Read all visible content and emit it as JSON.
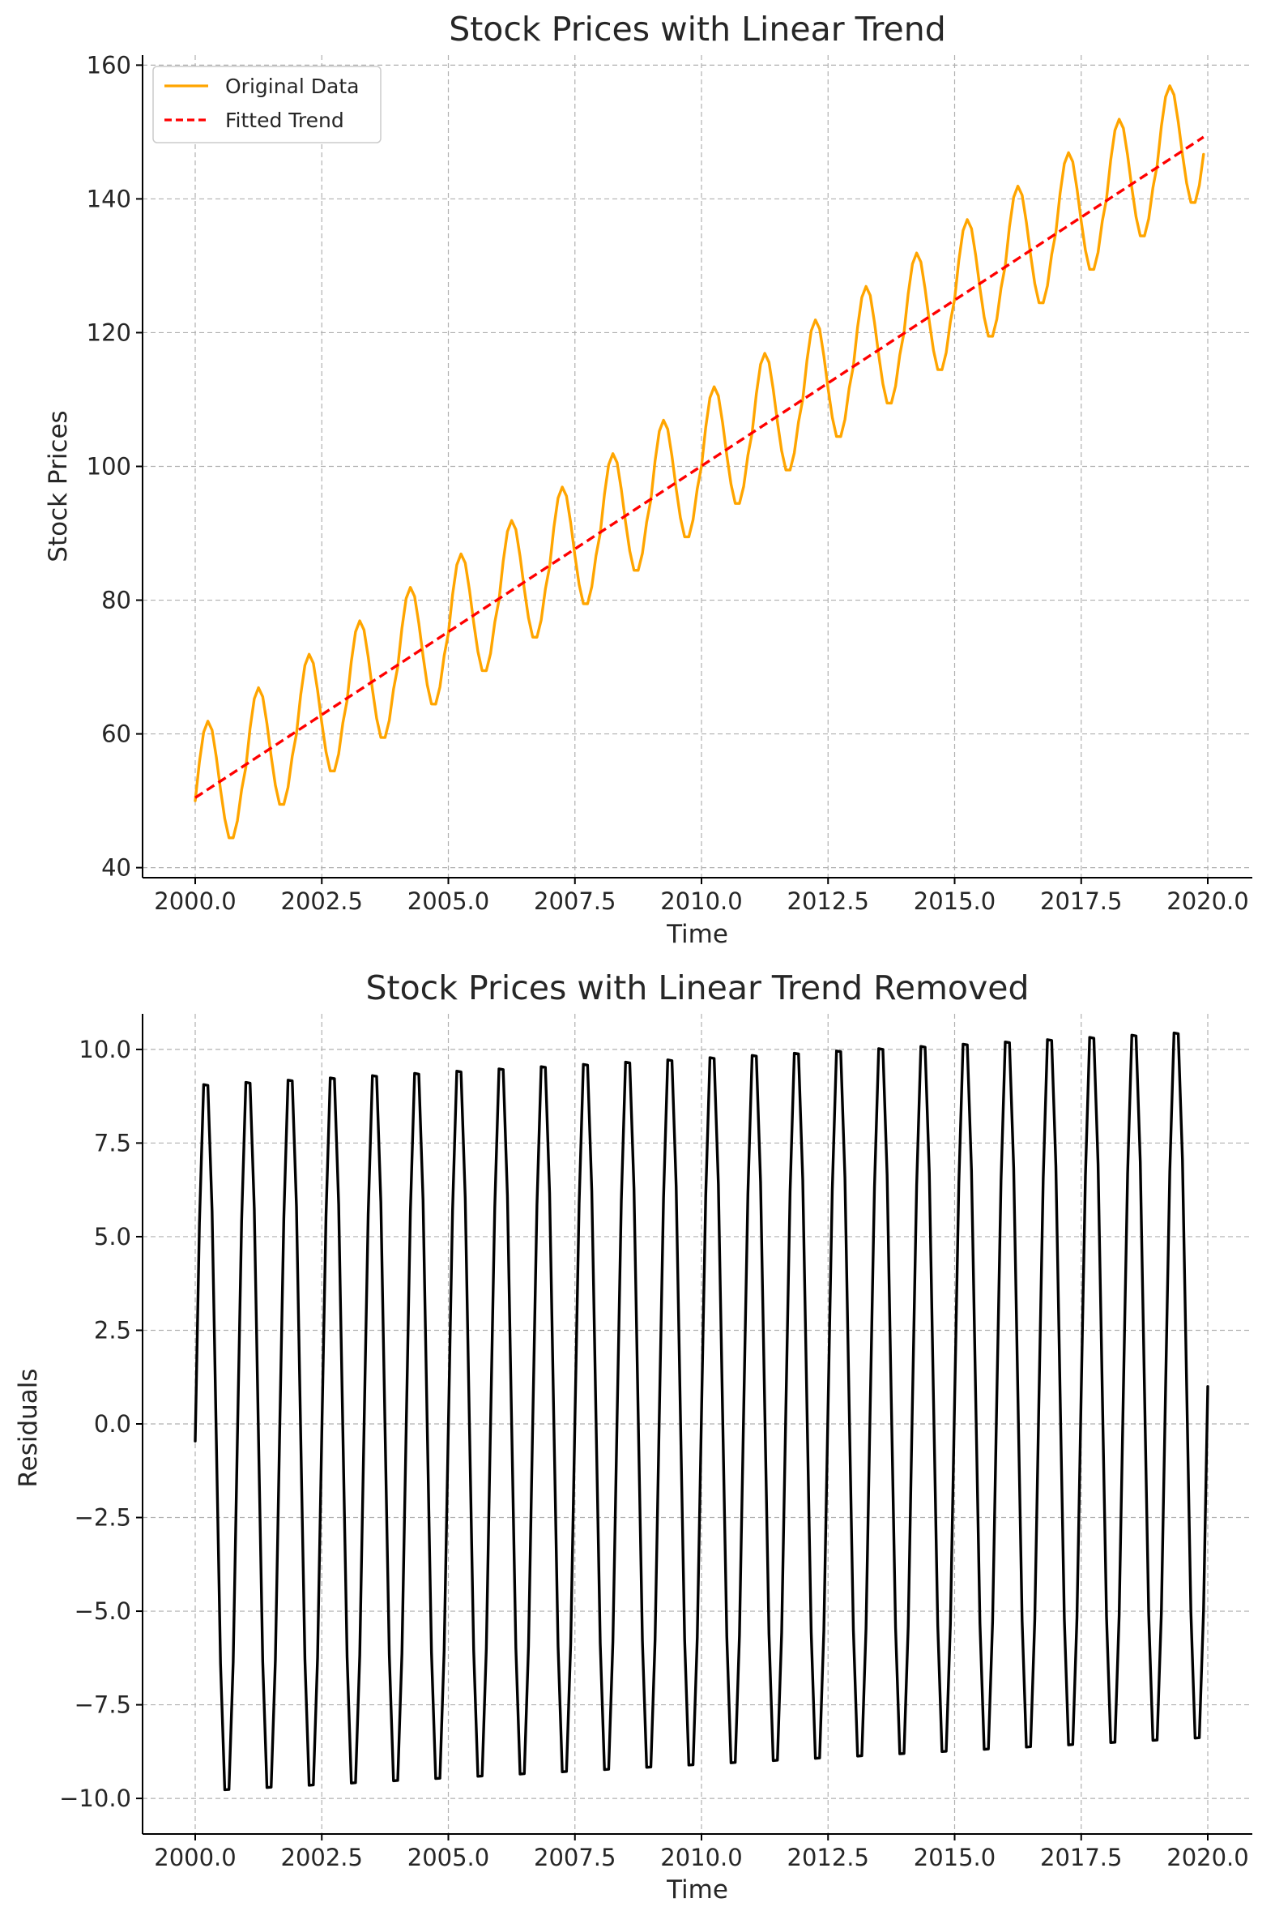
{
  "chart_data": [
    {
      "type": "line",
      "title": "Stock Prices with Linear Trend",
      "xlabel": "Time",
      "ylabel": "Stock Prices",
      "xlim": [
        1998.96,
        2020.88
      ],
      "ylim": [
        38.5,
        161.5
      ],
      "x_ticks": [
        2000,
        2002.5,
        2005,
        2007.5,
        2010,
        2012.5,
        2015,
        2017.5,
        2020
      ],
      "x_tick_labels": [
        "2000.0",
        "2002.5",
        "2005.0",
        "2007.5",
        "2010.0",
        "2012.5",
        "2015.0",
        "2017.5",
        "2020.0"
      ],
      "y_ticks": [
        40,
        60,
        80,
        100,
        120,
        140,
        160
      ],
      "y_tick_labels": [
        "40",
        "60",
        "80",
        "100",
        "120",
        "140",
        "160"
      ],
      "grid": true,
      "legend": "top-left",
      "series": [
        {
          "name": "Original Data",
          "color": "#FFA500",
          "line_style": "solid",
          "x_start": 2000.0,
          "x_step": 0.0833333,
          "values": [
            50.0,
            55.83,
            60.26,
            61.91,
            60.56,
            56.54,
            51.67,
            47.33,
            44.47,
            44.46,
            47.01,
            51.66,
            55.0,
            60.83,
            65.26,
            66.91,
            65.56,
            61.54,
            56.67,
            52.33,
            49.47,
            49.46,
            52.01,
            56.66,
            60.0,
            65.83,
            70.26,
            71.91,
            70.56,
            66.54,
            61.67,
            57.33,
            54.47,
            54.46,
            57.01,
            61.66,
            65.0,
            70.83,
            75.26,
            76.91,
            75.56,
            71.54,
            66.67,
            62.33,
            59.47,
            59.46,
            62.01,
            66.66,
            70.0,
            75.83,
            80.26,
            81.91,
            80.56,
            76.54,
            71.67,
            67.33,
            64.47,
            64.46,
            67.01,
            71.66,
            75.0,
            80.83,
            85.26,
            86.91,
            85.56,
            81.54,
            76.67,
            72.33,
            69.47,
            69.46,
            72.01,
            76.66,
            80.0,
            85.83,
            90.26,
            91.91,
            90.56,
            86.54,
            81.67,
            77.33,
            74.47,
            74.46,
            77.01,
            81.66,
            85.0,
            90.83,
            95.26,
            96.91,
            95.56,
            91.54,
            86.67,
            82.33,
            79.47,
            79.46,
            82.01,
            86.66,
            90.0,
            95.83,
            100.26,
            101.91,
            100.56,
            96.54,
            91.67,
            87.33,
            84.47,
            84.46,
            87.01,
            91.66,
            95.0,
            100.83,
            105.26,
            106.91,
            105.56,
            101.54,
            96.67,
            92.33,
            89.47,
            89.46,
            92.01,
            96.66,
            100.0,
            105.83,
            110.26,
            111.91,
            110.56,
            106.54,
            101.67,
            97.33,
            94.47,
            94.46,
            97.01,
            101.66,
            105.0,
            110.83,
            115.26,
            116.91,
            115.56,
            111.54,
            106.67,
            102.33,
            99.47,
            99.46,
            102.01,
            106.66,
            110.0,
            115.83,
            120.26,
            121.91,
            120.56,
            116.54,
            111.67,
            107.33,
            104.47,
            104.46,
            107.01,
            111.66,
            115.0,
            120.83,
            125.26,
            126.91,
            125.56,
            121.54,
            116.67,
            112.33,
            109.47,
            109.46,
            112.01,
            116.66,
            120.0,
            125.83,
            130.26,
            131.91,
            130.56,
            126.54,
            121.67,
            117.33,
            114.47,
            114.46,
            117.01,
            121.66,
            125.0,
            130.83,
            135.26,
            136.91,
            135.56,
            131.54,
            126.67,
            122.33,
            119.47,
            119.46,
            122.01,
            126.66,
            130.0,
            135.83,
            140.26,
            141.91,
            140.56,
            136.54,
            131.67,
            127.33,
            124.47,
            124.46,
            127.01,
            131.66,
            135.0,
            140.83,
            145.26,
            146.91,
            145.56,
            141.54,
            136.67,
            132.33,
            129.47,
            129.46,
            132.01,
            136.66,
            140.0,
            145.83,
            150.26,
            151.91,
            150.56,
            146.54,
            141.67,
            137.33,
            134.47,
            134.46,
            137.01,
            141.66,
            145.0,
            150.83,
            155.26,
            156.91,
            155.56,
            151.54,
            146.67,
            142.33,
            139.47,
            139.46,
            142.01,
            146.66
          ]
        },
        {
          "name": "Fitted Trend",
          "color": "#FF0000",
          "line_style": "dashed",
          "x": [
            2000.0,
            2019.9167
          ],
          "values": [
            50.46,
            149.25
          ]
        }
      ]
    },
    {
      "type": "line",
      "title": "Stock Prices with Linear Trend Removed",
      "xlabel": "Time",
      "ylabel": "Residuals",
      "xlim": [
        1998.96,
        2020.88
      ],
      "ylim": [
        -10.95,
        10.95
      ],
      "x_ticks": [
        2000,
        2002.5,
        2005,
        2007.5,
        2010,
        2012.5,
        2015,
        2017.5,
        2020
      ],
      "x_tick_labels": [
        "2000.0",
        "2002.5",
        "2005.0",
        "2007.5",
        "2010.0",
        "2012.5",
        "2015.0",
        "2017.5",
        "2020.0"
      ],
      "y_ticks": [
        10,
        7.5,
        5,
        2.5,
        0,
        -2.5,
        -5,
        -7.5,
        -10
      ],
      "y_tick_labels": [
        "10.0",
        "7.5",
        "5.0",
        "2.5",
        "0.0",
        "−2.5",
        "−5.0",
        "−7.5",
        "−10.0"
      ],
      "grid": true,
      "series": [
        {
          "name": "",
          "color": "#000000",
          "line_style": "solid",
          "x_start": 2000.0,
          "x_step": 0.0833333,
          "values": [
            -0.46,
            5.36,
            9.06,
            9.04,
            5.68,
            -0.4,
            -6.4,
            -9.77,
            -9.76,
            -6.36,
            -0.38,
            5.42,
            9.12,
            9.1,
            5.74,
            -0.34,
            -6.34,
            -9.71,
            -9.7,
            -6.3,
            -0.32,
            5.48,
            9.18,
            9.16,
            5.8,
            -0.28,
            -6.28,
            -9.65,
            -9.64,
            -6.24,
            -0.26,
            5.54,
            9.24,
            9.22,
            5.86,
            -0.22,
            -6.22,
            -9.59,
            -9.58,
            -6.18,
            -0.2,
            5.6,
            9.3,
            9.28,
            5.92,
            -0.16,
            -6.16,
            -9.53,
            -9.52,
            -6.12,
            -0.14,
            5.66,
            9.36,
            9.34,
            5.98,
            -0.1,
            -6.1,
            -9.47,
            -9.46,
            -6.06,
            -0.08,
            5.72,
            9.42,
            9.4,
            6.04,
            -0.04,
            -6.04,
            -9.41,
            -9.4,
            -6.0,
            -0.02,
            5.78,
            9.48,
            9.46,
            6.1,
            0.02,
            -5.98,
            -9.35,
            -9.34,
            -5.94,
            0.04,
            5.84,
            9.54,
            9.52,
            6.16,
            0.08,
            -5.92,
            -9.29,
            -9.28,
            -5.88,
            0.1,
            5.9,
            9.6,
            9.58,
            6.22,
            0.14,
            -5.86,
            -9.23,
            -9.22,
            -5.82,
            0.16,
            5.96,
            9.66,
            9.64,
            6.28,
            0.2,
            -5.8,
            -9.17,
            -9.16,
            -5.76,
            0.22,
            6.02,
            9.72,
            9.7,
            6.34,
            0.26,
            -5.74,
            -9.11,
            -9.1,
            -5.7,
            0.28,
            6.08,
            9.78,
            9.76,
            6.4,
            0.32,
            -5.68,
            -9.05,
            -9.04,
            -5.64,
            0.34,
            6.14,
            9.84,
            9.82,
            6.46,
            0.38,
            -5.62,
            -8.99,
            -8.98,
            -5.58,
            0.4,
            6.2,
            9.9,
            9.88,
            6.52,
            0.44,
            -5.56,
            -8.93,
            -8.92,
            -5.52,
            0.46,
            6.26,
            9.96,
            9.94,
            6.58,
            0.5,
            -5.5,
            -8.87,
            -8.86,
            -5.46,
            0.52,
            6.32,
            10.02,
            10.0,
            6.64,
            0.56,
            -5.44,
            -8.81,
            -8.8,
            -5.4,
            0.58,
            6.38,
            10.08,
            10.06,
            6.7,
            0.62,
            -5.38,
            -8.75,
            -8.74,
            -5.34,
            0.64,
            6.44,
            10.14,
            10.12,
            6.76,
            0.68,
            -5.32,
            -8.69,
            -8.68,
            -5.28,
            0.7,
            6.5,
            10.2,
            10.18,
            6.82,
            0.74,
            -5.26,
            -8.63,
            -8.62,
            -5.22,
            0.76,
            6.56,
            10.26,
            10.24,
            6.88,
            0.8,
            -5.2,
            -8.57,
            -8.56,
            -5.16,
            0.82,
            6.62,
            10.32,
            10.3,
            6.94,
            0.86,
            -5.14,
            -8.51,
            -8.5,
            -5.1,
            0.88,
            6.68,
            10.38,
            10.36,
            7.0,
            0.92,
            -5.08,
            -8.45,
            -8.44,
            -5.04,
            0.94,
            6.74,
            10.44,
            10.42,
            7.06,
            0.98,
            -5.02,
            -8.39,
            -8.38,
            -4.98,
            1.0
          ]
        }
      ]
    }
  ]
}
